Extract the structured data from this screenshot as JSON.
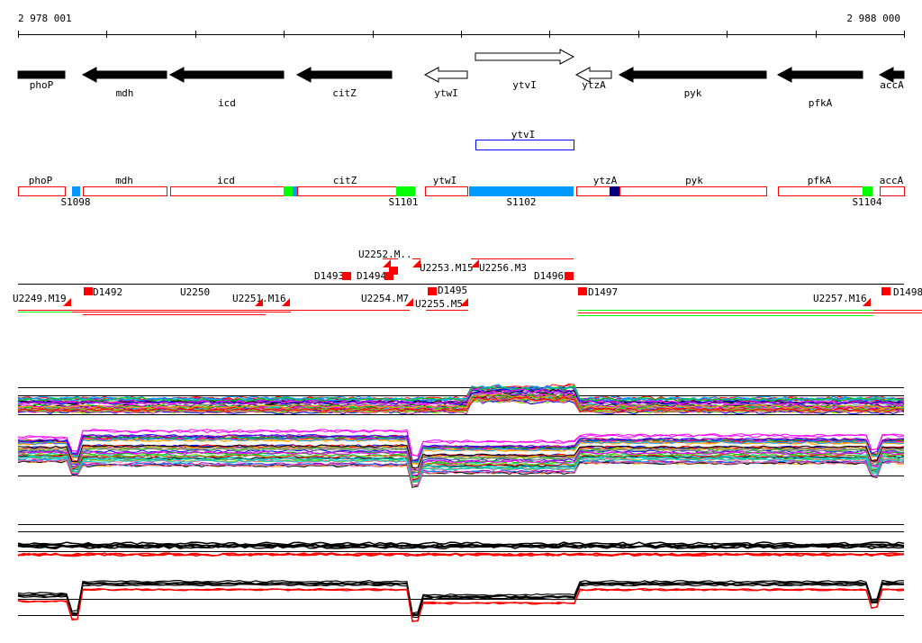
{
  "ruler": {
    "start_label": "2 978 001",
    "end_label": "2 988 000"
  },
  "genes": [
    {
      "name": "phoP",
      "x1": 20,
      "x2": 72,
      "dir": "none",
      "fill": true,
      "row": 0,
      "ly": 98
    },
    {
      "name": "mdh",
      "x1": 92,
      "x2": 185,
      "dir": "left",
      "fill": true,
      "row": 0,
      "ly": 107
    },
    {
      "name": "icd",
      "x1": 189,
      "x2": 315,
      "dir": "left",
      "fill": true,
      "row": 0,
      "ly": 118
    },
    {
      "name": "citZ",
      "x1": 330,
      "x2": 435,
      "dir": "left",
      "fill": true,
      "row": 0,
      "ly": 107
    },
    {
      "name": "ytwI",
      "x1": 472,
      "x2": 519,
      "dir": "left",
      "fill": false,
      "row": 0,
      "ly": 107
    },
    {
      "name": "ytvI",
      "x1": 528,
      "x2": 637,
      "dir": "right",
      "fill": false,
      "row": 1,
      "ly": 98
    },
    {
      "name": "ytzA",
      "x1": 640,
      "x2": 679,
      "dir": "left",
      "fill": false,
      "row": 0,
      "ly": 98
    },
    {
      "name": "pyk",
      "x1": 688,
      "x2": 851,
      "dir": "left",
      "fill": true,
      "row": 0,
      "ly": 107
    },
    {
      "name": "pfkA",
      "x1": 864,
      "x2": 958,
      "dir": "left",
      "fill": true,
      "row": 0,
      "ly": 118
    },
    {
      "name": "accA",
      "x1": 977,
      "x2": 1004,
      "dir": "left",
      "fill": true,
      "row": 0,
      "ly": 98
    }
  ],
  "single_feature": {
    "label": "ytvI"
  },
  "segments": {
    "genes": [
      "phoP",
      "mdh",
      "icd",
      "citZ",
      "ytwI",
      "ytzA",
      "pyk",
      "pfkA",
      "accA"
    ],
    "sites": [
      "S1098",
      "S1101",
      "S1102",
      "S1104"
    ]
  },
  "transcripts": {
    "above": [
      "D1493",
      "D1494",
      "U2252.M..",
      "U2253.M15",
      "U2256.M3",
      "D1496"
    ],
    "below": [
      "U2249.M19",
      "D1492",
      "U2250",
      "U2251.M16",
      "U2254.M7",
      "U2255.M5",
      "D1495",
      "D1497",
      "U2257.M16",
      "D1498"
    ]
  },
  "colors": {
    "red": "#ff0000",
    "green": "#00ff00",
    "blue": "#0099ff",
    "navy": "#000080"
  }
}
